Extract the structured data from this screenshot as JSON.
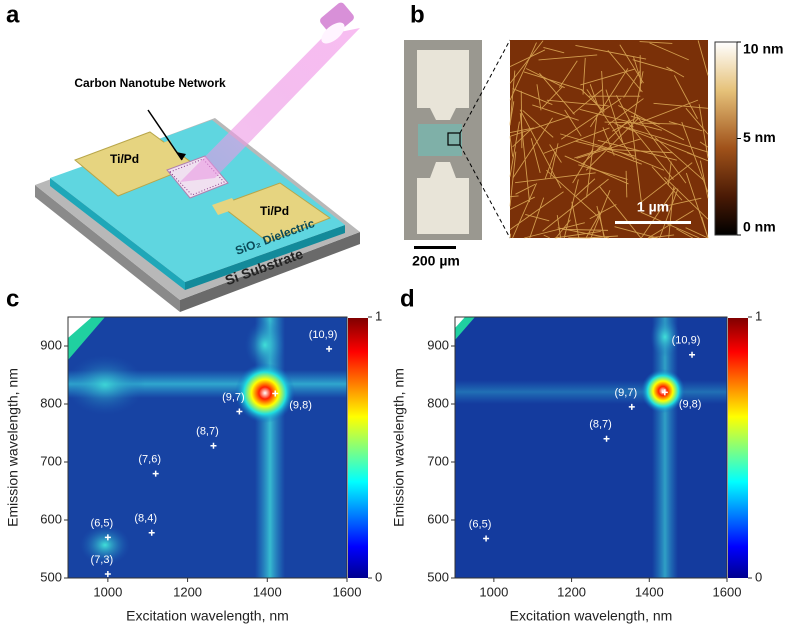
{
  "panel_labels": [
    "a",
    "b",
    "c",
    "d"
  ],
  "diagram": {
    "cnt_label": "Carbon Nanotube Network",
    "left_pad": "Ti/Pd",
    "right_pad": "Ti/Pd",
    "dielectric": "SiO₂ Dielectric",
    "substrate": "Si Substrate"
  },
  "micrograph": {
    "scale_bar": "200 µm",
    "afm_scale_bar": "1 µm",
    "colorbar_lim": [
      0,
      10
    ],
    "colorbar_ticks": [
      {
        "value": 10,
        "label": "10 nm"
      },
      {
        "value": 5,
        "label": "5 nm"
      },
      {
        "value": 0,
        "label": "0 nm"
      }
    ]
  },
  "chart_data": [
    {
      "type": "scatter",
      "xlabel": "Excitation wavelength, nm",
      "ylabel": "Emission wavelength, nm",
      "xlim": [
        900,
        1600
      ],
      "ylim": [
        500,
        950
      ],
      "xticks": [
        1000,
        1200,
        1400,
        1600
      ],
      "yticks": [
        500,
        600,
        700,
        800,
        900
      ],
      "clim": [
        0,
        1
      ],
      "cticks": [
        0,
        1
      ],
      "point_labels": [
        "(7,3)",
        "(6,5)",
        "(8,4)",
        "(7,6)",
        "(8,7)",
        "(9,7)",
        "(9,8)",
        "(10,9)"
      ],
      "x": [
        1000,
        1000,
        1110,
        1120,
        1265,
        1330,
        1420,
        1555
      ],
      "y": [
        507,
        570,
        578,
        680,
        728,
        787,
        818,
        895
      ]
    },
    {
      "type": "scatter",
      "xlabel": "Excitation wavelength, nm",
      "ylabel": "Emission wavelength, nm",
      "xlim": [
        900,
        1600
      ],
      "ylim": [
        500,
        950
      ],
      "xticks": [
        1000,
        1200,
        1400,
        1600
      ],
      "yticks": [
        500,
        600,
        700,
        800,
        900
      ],
      "clim": [
        0,
        1
      ],
      "cticks": [
        0,
        1
      ],
      "point_labels": [
        "(6,5)",
        "(8,7)",
        "(9,7)",
        "(9,8)",
        "(10,9)"
      ],
      "x": [
        980,
        1290,
        1355,
        1440,
        1510
      ],
      "y": [
        568,
        740,
        795,
        820,
        885
      ]
    }
  ]
}
